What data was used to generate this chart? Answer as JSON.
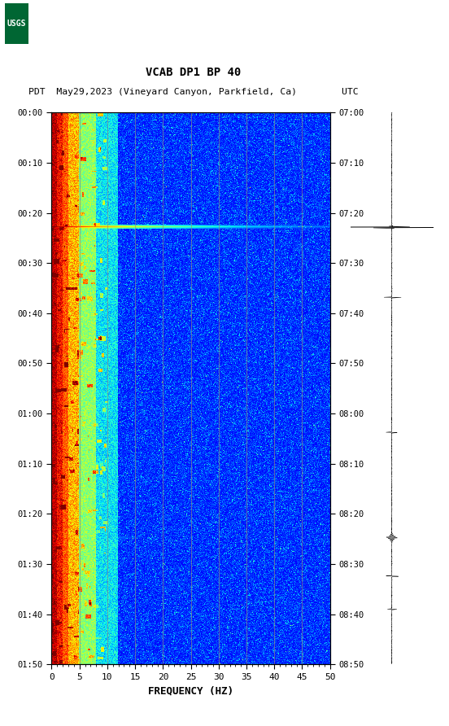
{
  "title_line1": "VCAB DP1 BP 40",
  "title_line2": "PDT  May29,2023 (Vineyard Canyon, Parkfield, Ca)        UTC",
  "xlabel": "FREQUENCY (HZ)",
  "freq_ticks": [
    0,
    5,
    10,
    15,
    20,
    25,
    30,
    35,
    40,
    45,
    50
  ],
  "time_left_labels": [
    "00:00",
    "00:10",
    "00:20",
    "00:30",
    "00:40",
    "00:50",
    "01:00",
    "01:10",
    "01:20",
    "01:30",
    "01:40",
    "01:50"
  ],
  "time_right_labels": [
    "07:00",
    "07:10",
    "07:20",
    "07:30",
    "07:40",
    "07:50",
    "08:00",
    "08:10",
    "08:20",
    "08:30",
    "08:40",
    "08:50"
  ],
  "n_time": 720,
  "n_freq": 500,
  "bg_color": "#ffffff",
  "usgs_green": "#006633",
  "grid_color": "#888888",
  "fig_width": 5.52,
  "fig_height": 8.92,
  "dpi": 100
}
